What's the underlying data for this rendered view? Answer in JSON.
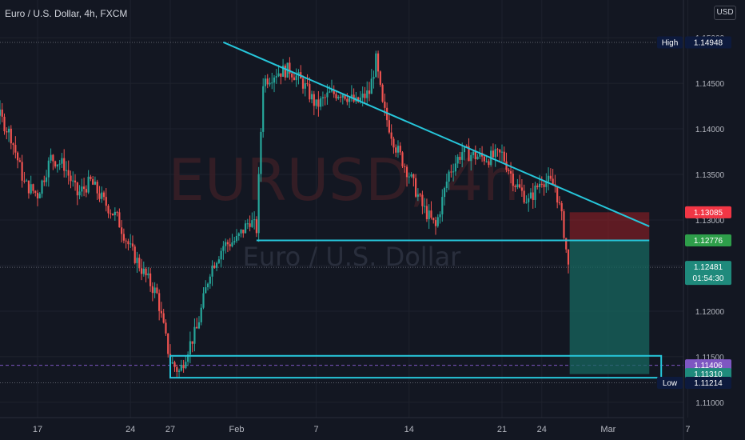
{
  "header": {
    "symbol_title": "Euro / U.S. Dollar, 4h, FXCM",
    "currency_button": "USD"
  },
  "watermark": {
    "ticker": "EURUSD, 4h",
    "name": "Euro / U.S. Dollar"
  },
  "colors": {
    "background": "#131722",
    "grid": "#1e222d",
    "up_candle": "#26a69a",
    "down_candle": "#ef5350",
    "trendline": "#26c6da",
    "zone_box": "#26c6da",
    "stop_zone": "#9c1f25",
    "target_zone": "#17675f",
    "price_label_red": "#f23645",
    "price_label_green": "#2e9e4a",
    "price_label_teal": "#1f8a7c",
    "price_label_purple": "#7e57c2",
    "price_label_navy": "#0d1a3d"
  },
  "chart_data": {
    "type": "candlestick",
    "timeframe": "4h",
    "y_range": [
      1.1085,
      1.1515
    ],
    "y_ticks": [
      "1.11000",
      "1.11500",
      "1.12000",
      "1.12500",
      "1.13000",
      "1.13500",
      "1.14000",
      "1.14500",
      "1.15000"
    ],
    "x_ticks": [
      "17",
      "24",
      "27",
      "Feb",
      "7",
      "14",
      "21",
      "24",
      "Mar",
      "7"
    ],
    "x_tick_days": [
      17,
      24,
      27,
      32,
      38,
      45,
      52,
      55,
      60,
      66
    ],
    "price_path": [
      [
        10,
        1.1465
      ],
      [
        11,
        1.1478
      ],
      [
        12,
        1.1455
      ],
      [
        13,
        1.1408
      ],
      [
        14,
        1.1418
      ],
      [
        15,
        1.1392
      ],
      [
        16,
        1.134
      ],
      [
        17,
        1.1328
      ],
      [
        18,
        1.1368
      ],
      [
        19,
        1.136
      ],
      [
        20,
        1.1328
      ],
      [
        21,
        1.1342
      ],
      [
        22,
        1.132
      ],
      [
        23,
        1.1302
      ],
      [
        24,
        1.1268
      ],
      [
        25,
        1.1242
      ],
      [
        26,
        1.1218
      ],
      [
        27,
        1.1145
      ],
      [
        27.7,
        1.1133
      ],
      [
        28.3,
        1.1158
      ],
      [
        29,
        1.118
      ],
      [
        30,
        1.1245
      ],
      [
        31,
        1.1272
      ],
      [
        32,
        1.1278
      ],
      [
        33,
        1.13
      ],
      [
        33.5,
        1.129
      ],
      [
        34,
        1.1452
      ],
      [
        35,
        1.1462
      ],
      [
        36,
        1.1465
      ],
      [
        37,
        1.145
      ],
      [
        38,
        1.1425
      ],
      [
        39,
        1.1438
      ],
      [
        40,
        1.144
      ],
      [
        41,
        1.1428
      ],
      [
        42,
        1.144
      ],
      [
        42.5,
        1.1475
      ],
      [
        43,
        1.1425
      ],
      [
        44,
        1.138
      ],
      [
        45,
        1.135
      ],
      [
        46,
        1.1315
      ],
      [
        47,
        1.1292
      ],
      [
        48,
        1.1352
      ],
      [
        49,
        1.1375
      ],
      [
        50,
        1.137
      ],
      [
        51,
        1.1368
      ],
      [
        52,
        1.1372
      ],
      [
        53,
        1.134
      ],
      [
        54,
        1.132
      ],
      [
        55,
        1.1345
      ],
      [
        56,
        1.1338
      ],
      [
        56.6,
        1.1295
      ],
      [
        57,
        1.1248
      ]
    ],
    "current_price": 1.12481,
    "countdown": "01:54:30",
    "high": {
      "label": "High",
      "value": 1.14948
    },
    "low": {
      "label": "Low",
      "value": 1.11214
    },
    "drawings": {
      "trendline": {
        "from": [
          31,
          1.1495
        ],
        "to": [
          63.1,
          1.1293
        ]
      },
      "horizontal_level": {
        "value": 1.12776,
        "from_day": 33.5,
        "to_day": 63.1
      },
      "support_zone": {
        "top": 1.1151,
        "bottom": 1.1127,
        "from_day": 27,
        "to_day": 64
      },
      "short_position": {
        "entry": 1.12776,
        "stop": 1.13085,
        "target": 1.1131,
        "from_day": 57.1,
        "to_day": 63.1
      }
    },
    "price_labels": [
      {
        "value": 1.14948,
        "text": "1.14948",
        "tag": "High",
        "color": "price_label_navy"
      },
      {
        "value": 1.13085,
        "text": "1.13085",
        "color": "price_label_red"
      },
      {
        "value": 1.12776,
        "text": "1.12776",
        "color": "price_label_green"
      },
      {
        "value": 1.12481,
        "text": "1.12481",
        "sub": "01:54:30",
        "color": "price_label_teal"
      },
      {
        "value": 1.11406,
        "text": "1.11406",
        "color": "price_label_purple"
      },
      {
        "value": 1.1131,
        "text": "1.11310",
        "color": "price_label_teal"
      },
      {
        "value": 1.11214,
        "text": "1.11214",
        "tag": "Low",
        "color": "price_label_navy"
      }
    ]
  }
}
